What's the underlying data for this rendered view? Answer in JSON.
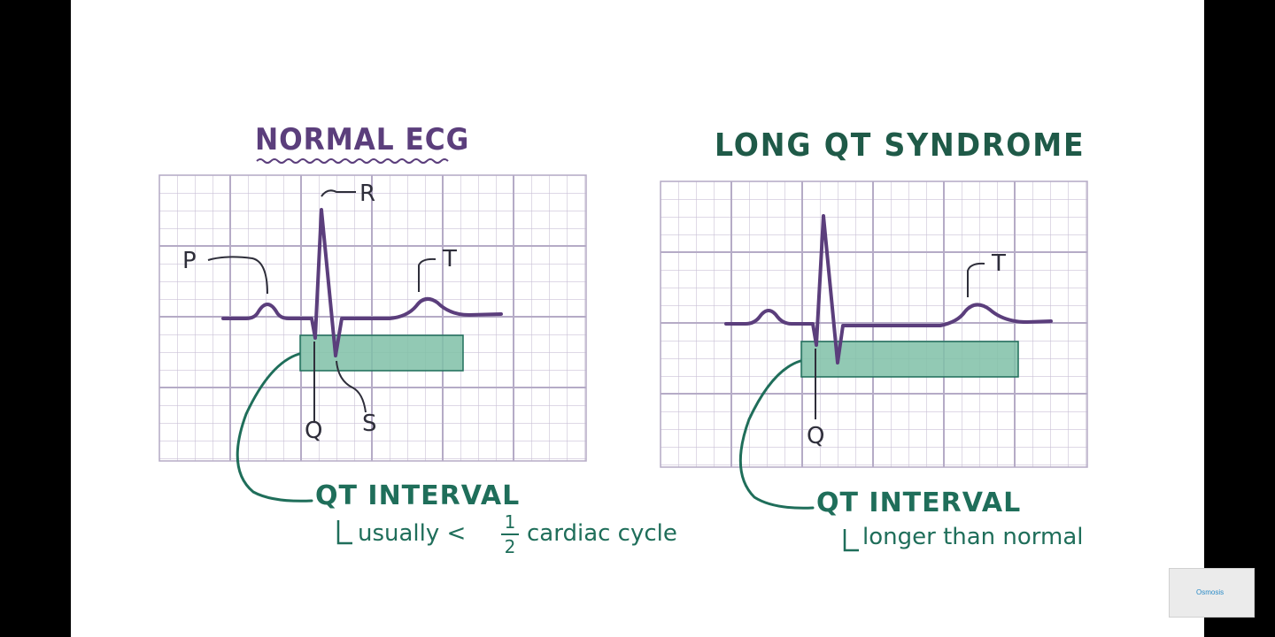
{
  "normal_panel": {
    "title": "NORMAL ECG",
    "labels": {
      "p": "P",
      "r": "R",
      "t": "T",
      "q": "Q",
      "s": "S"
    },
    "qt_label": "QT INTERVAL",
    "note_prefix": "usually <",
    "note_fraction_numerator": "1",
    "note_fraction_denominator": "2",
    "note_suffix": "cardiac cycle"
  },
  "long_panel": {
    "title": "LONG QT SYNDROME",
    "labels": {
      "t": "T",
      "q": "Q"
    },
    "qt_label": "QT INTERVAL",
    "note": "longer than normal"
  },
  "watermark": {
    "logo_text": "Osmosis"
  },
  "colors": {
    "trace": "#5b3e7c",
    "grid": "#c9c1d6",
    "grid_major": "#b5abc6",
    "interval_fill": "#7fbfa7",
    "accent": "#1f6e5a",
    "label": "#2e2e3a"
  }
}
